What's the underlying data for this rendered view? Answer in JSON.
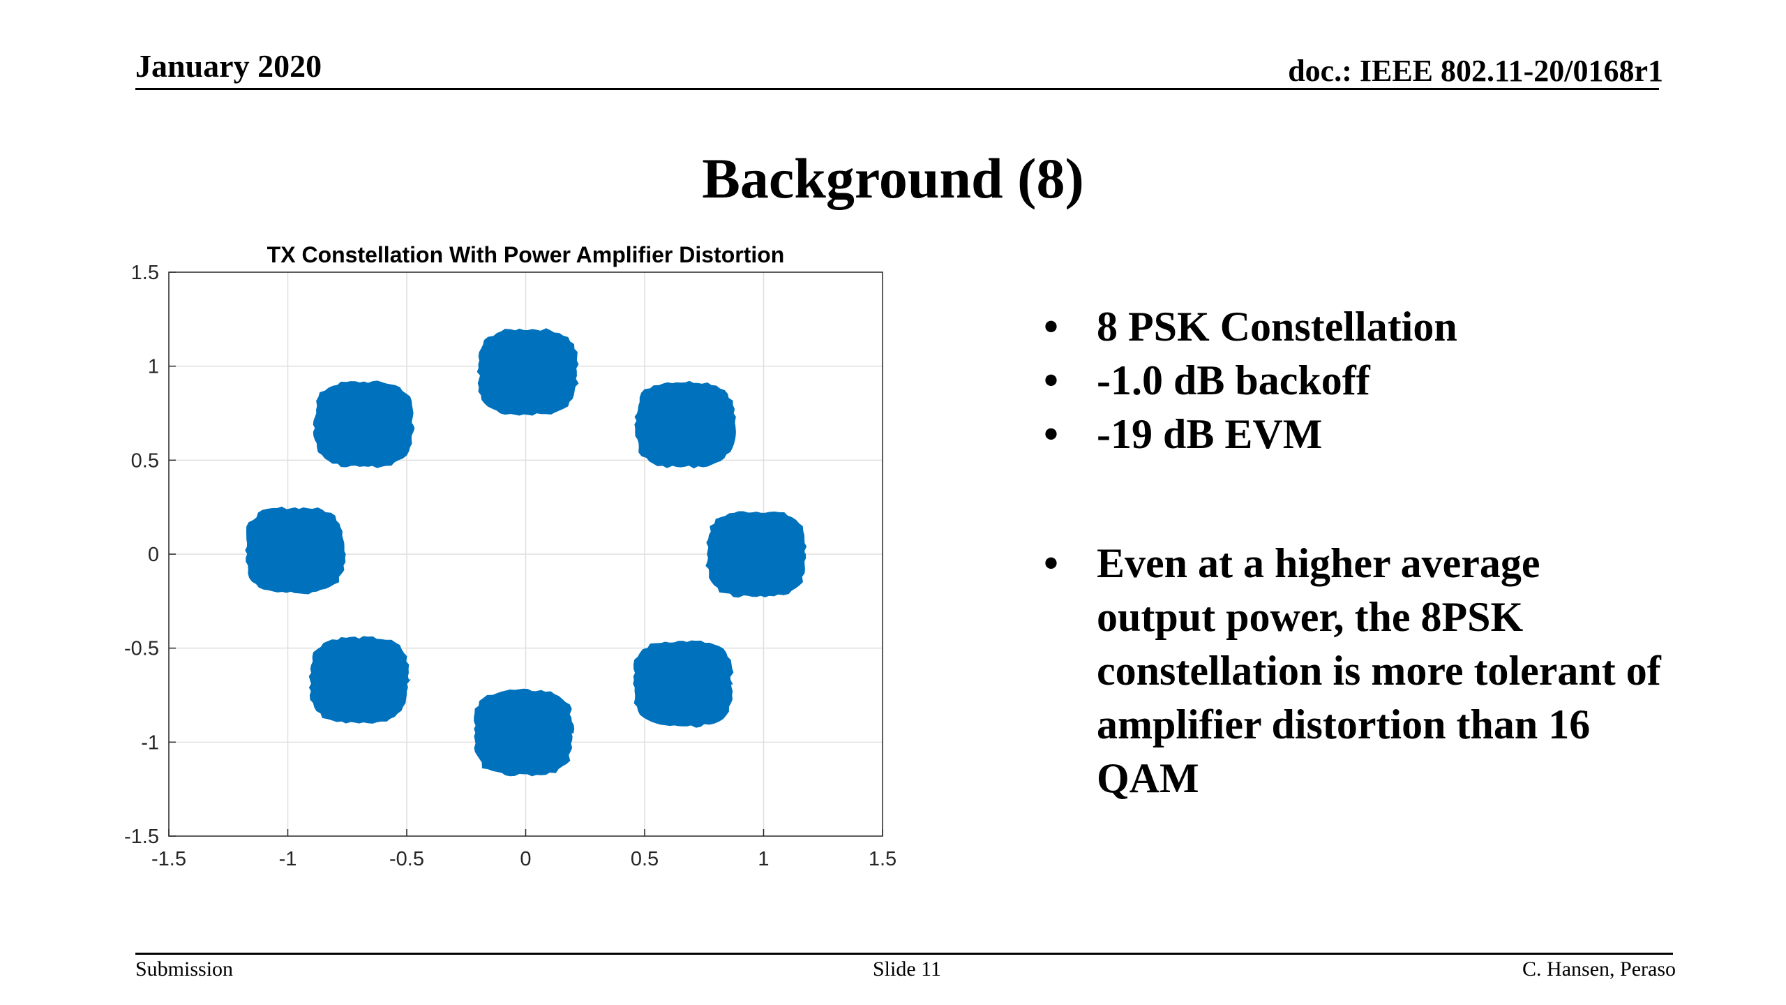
{
  "header": {
    "date": "January 2020",
    "doc": "doc.: IEEE 802.11-20/0168r1"
  },
  "title": "Background (8)",
  "chart_data": {
    "type": "scatter",
    "title": "TX Constellation With Power Amplifier Distortion",
    "xlabel": "",
    "ylabel": "",
    "xlim": [
      -1.5,
      1.5
    ],
    "ylim": [
      -1.5,
      1.5
    ],
    "xticks": [
      -1.5,
      -1,
      -0.5,
      0,
      0.5,
      1,
      1.5
    ],
    "yticks": [
      -1.5,
      -1,
      -0.5,
      0,
      0.5,
      1,
      1.5
    ],
    "grid": true,
    "color": "#0072BD",
    "series": [
      {
        "clusters": [
          {
            "x": 0.97,
            "y": 0.0
          },
          {
            "x": 0.67,
            "y": 0.69
          },
          {
            "x": 0.01,
            "y": 0.97
          },
          {
            "x": -0.68,
            "y": 0.69
          },
          {
            "x": -0.97,
            "y": 0.02
          },
          {
            "x": -0.7,
            "y": -0.67
          },
          {
            "x": -0.01,
            "y": -0.95
          },
          {
            "x": 0.66,
            "y": -0.69
          }
        ],
        "cluster_half_width": 0.22,
        "cluster_half_height": 0.24
      }
    ]
  },
  "bullets": [
    "8 PSK Constellation",
    "-1.0 dB backoff",
    "-19 dB EVM",
    "Even at a higher average output power, the 8PSK constellation is more tolerant of amplifier distortion than 16 QAM"
  ],
  "footer": {
    "left": "Submission",
    "center": "Slide 11",
    "right": "C. Hansen, Peraso"
  }
}
